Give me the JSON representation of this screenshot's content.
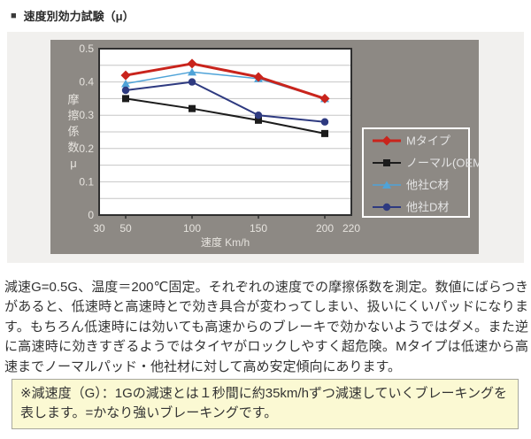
{
  "header": {
    "bullet": "■",
    "title": "速度別効力試験（μ）"
  },
  "chart_data": {
    "type": "line",
    "x": [
      50,
      100,
      150,
      200
    ],
    "x_axis": {
      "label": "速度 Km/h",
      "range": [
        30,
        220
      ],
      "ticks": [
        30,
        50,
        100,
        150,
        200,
        220
      ]
    },
    "y_axis": {
      "label": "摩擦係数μ",
      "range": [
        0,
        0.5
      ],
      "ticks": [
        0,
        0.1,
        0.2,
        0.3,
        0.4,
        0.5
      ],
      "minor_grid_step": 0.05
    },
    "series": [
      {
        "name": "Mタイプ",
        "color": "#c9241c",
        "marker": "diamond",
        "width": 3,
        "values": [
          0.42,
          0.455,
          0.415,
          0.35
        ]
      },
      {
        "name": "ノーマル(OEM)",
        "color": "#1c1c1c",
        "marker": "square",
        "width": 2,
        "values": [
          0.35,
          0.32,
          0.285,
          0.245
        ]
      },
      {
        "name": "他社C材",
        "color": "#4fa3d8",
        "marker": "triangle",
        "width": 1.5,
        "values": [
          0.395,
          0.43,
          0.41,
          0.35
        ]
      },
      {
        "name": "他社D材",
        "color": "#2e3a80",
        "marker": "circle",
        "width": 2,
        "values": [
          0.375,
          0.4,
          0.3,
          0.28
        ]
      }
    ],
    "legend_position": "right",
    "grid": true
  },
  "colors": {
    "chart_bg": "#8d8984",
    "plot_bg": "#ffffff",
    "grid": "#c6c6c6",
    "axis": "#2f2f2f",
    "tick_text": "#e6e3de",
    "legend_border": "#ffffff",
    "legend_text": "#e4e4e4",
    "panel_bg": "#f1f0ee",
    "note_bg": "#fbf9d3",
    "note_border": "#a8a89e",
    "body_text": "#333333"
  },
  "description": {
    "paragraph": "減速G=0.5G、温度＝200℃固定。それぞれの速度での摩擦係数を測定。数値にばらつきがあると、低速時と高速時とで効き具合が変わってしまい、扱いにくいパッドになります。もちろん低速時には効いても高速からのブレーキで効かないようではダメ。また逆に高速時に効きすぎるようではタイヤがロックしやすく超危険。Mタイプは低速から高速までノーマルパッド・他社材に対して高め安定傾向にあります。"
  },
  "note": {
    "text": "※減速度（G）：1Gの減速とは１秒間に約35km/hずつ減速していくブレーキングを表します。=かなり強いブレーキングです。"
  }
}
